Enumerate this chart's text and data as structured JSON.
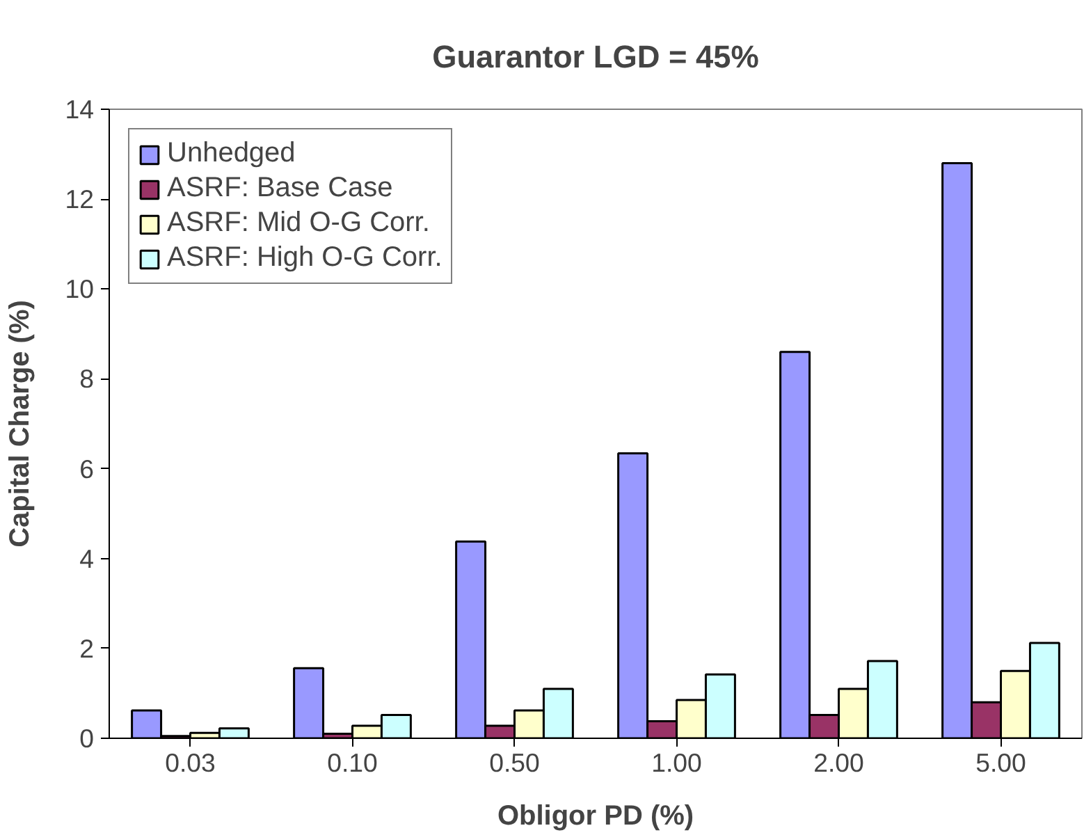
{
  "chart_data": {
    "type": "bar",
    "title": "Guarantor LGD = 45%",
    "xlabel": "Obligor PD (%)",
    "ylabel": "Capital Charge (%)",
    "categories": [
      "0.03",
      "0.10",
      "0.50",
      "1.00",
      "2.00",
      "5.00"
    ],
    "series": [
      {
        "name": "Unhedged",
        "color": "#9999ff",
        "values": [
          0.62,
          1.56,
          4.38,
          6.34,
          8.6,
          12.8
        ]
      },
      {
        "name": "ASRF: Base Case",
        "color": "#993366",
        "values": [
          0.05,
          0.1,
          0.28,
          0.38,
          0.52,
          0.8
        ]
      },
      {
        "name": "ASRF: Mid O-G Corr.",
        "color": "#ffffcc",
        "values": [
          0.12,
          0.28,
          0.62,
          0.85,
          1.1,
          1.5
        ]
      },
      {
        "name": "ASRF: High O-G Corr.",
        "color": "#ccffff",
        "values": [
          0.22,
          0.52,
          1.1,
          1.42,
          1.72,
          2.12
        ]
      }
    ],
    "ylim": [
      0,
      14
    ],
    "yticks": [
      0,
      2,
      4,
      6,
      8,
      10,
      12,
      14
    ],
    "grid": false,
    "legend": "top left"
  }
}
